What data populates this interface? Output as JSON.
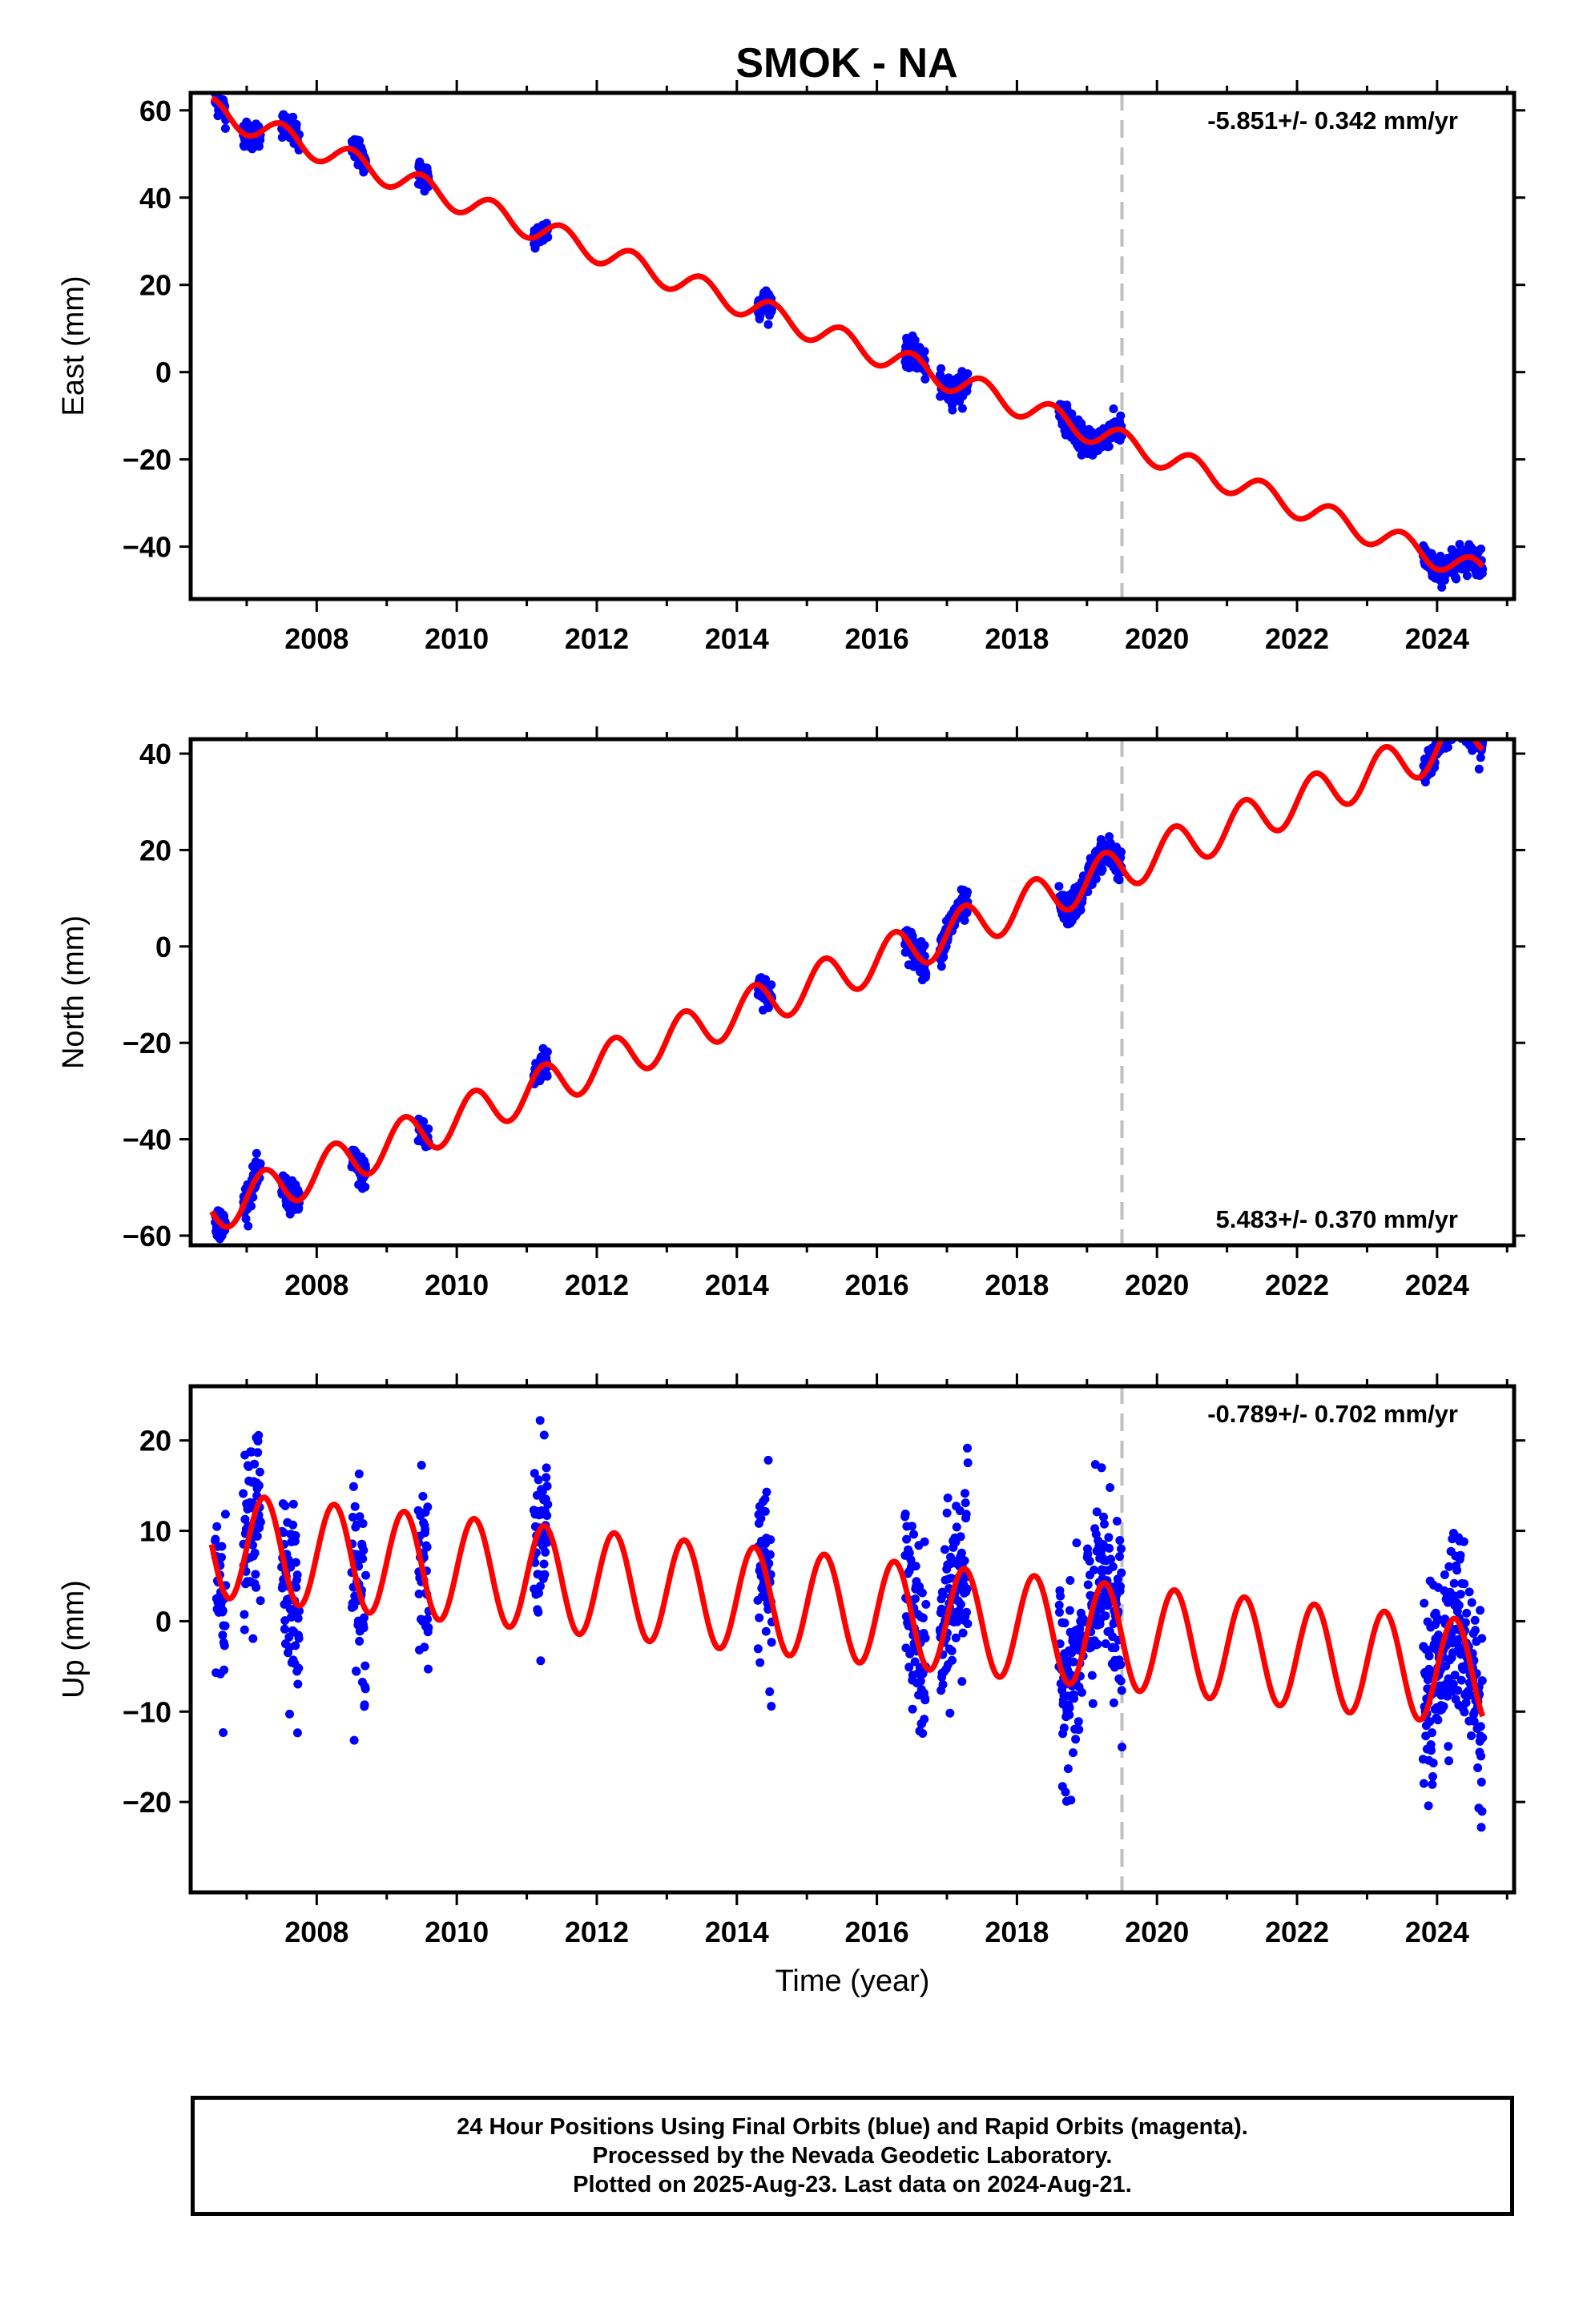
{
  "title": "SMOK - NA",
  "xlabel": "Time (year)",
  "footer": {
    "line1": "24 Hour Positions Using Final Orbits (blue) and Rapid Orbits (magenta).",
    "line2": "Processed by the Nevada Geodetic Laboratory.",
    "line3": "Plotted on 2025-Aug-23. Last data on 2024-Aug-21."
  },
  "colors": {
    "data": "#0000ff",
    "model": "#ff0000",
    "marker_line": "#c0c0c0",
    "axis": "#000000"
  },
  "chart_data": [
    {
      "type": "scatter",
      "ylabel": "East (mm)",
      "rate": "-5.851+/- 0.342 mm/yr",
      "rate_position": "top-right",
      "xlim": [
        2006.2,
        2025.1
      ],
      "ylim": [
        -52,
        64
      ],
      "xticks": [
        2008,
        2010,
        2012,
        2014,
        2016,
        2018,
        2020,
        2022,
        2024
      ],
      "yticks": [
        -40,
        -20,
        0,
        20,
        40,
        60
      ],
      "vline_x": 2019.5,
      "model": {
        "intercept": 60.0,
        "rate": -5.851,
        "annual_amp": 2.8,
        "phase": 0.25,
        "offset": 0.0
      },
      "data_segments": [
        [
          2006.55,
          2006.7
        ],
        [
          2006.95,
          2007.2
        ],
        [
          2007.5,
          2007.75
        ],
        [
          2008.5,
          2008.7
        ],
        [
          2009.45,
          2009.6
        ],
        [
          2011.1,
          2011.3
        ],
        [
          2014.3,
          2014.5
        ],
        [
          2016.4,
          2016.7
        ],
        [
          2016.9,
          2017.3
        ],
        [
          2018.6,
          2018.95
        ],
        [
          2019.0,
          2019.5
        ],
        [
          2023.8,
          2024.65
        ]
      ],
      "data_scatter": 1.5
    },
    {
      "type": "scatter",
      "ylabel": "North (mm)",
      "rate": "5.483+/- 0.370 mm/yr",
      "rate_position": "bottom-right",
      "xlim": [
        2006.2,
        2025.1
      ],
      "ylim": [
        -62,
        43
      ],
      "xticks": [
        2008,
        2010,
        2012,
        2014,
        2016,
        2018,
        2020,
        2022,
        2024
      ],
      "yticks": [
        -60,
        -40,
        -20,
        0,
        20,
        40
      ],
      "vline_x": 2019.5,
      "model": {
        "intercept": -55.0,
        "rate": 5.483,
        "annual_amp": 4.5,
        "phase": 0.0,
        "offset": 0.0
      },
      "data_segments": [
        [
          2006.55,
          2006.7
        ],
        [
          2006.95,
          2007.2
        ],
        [
          2007.5,
          2007.75
        ],
        [
          2008.5,
          2008.7
        ],
        [
          2009.45,
          2009.6
        ],
        [
          2011.1,
          2011.3
        ],
        [
          2014.3,
          2014.5
        ],
        [
          2016.4,
          2016.7
        ],
        [
          2016.9,
          2017.3
        ],
        [
          2018.6,
          2018.95
        ],
        [
          2019.0,
          2019.5
        ],
        [
          2023.8,
          2024.65
        ]
      ],
      "data_scatter": 1.6
    },
    {
      "type": "scatter",
      "ylabel": "Up (mm)",
      "rate": "-0.789+/- 0.702 mm/yr",
      "rate_position": "top-right",
      "xlim": [
        2006.2,
        2025.1
      ],
      "ylim": [
        -30,
        26
      ],
      "xticks": [
        2008,
        2010,
        2012,
        2014,
        2016,
        2018,
        2020,
        2022,
        2024
      ],
      "yticks": [
        -20,
        -10,
        0,
        10,
        20
      ],
      "vline_x": 2019.5,
      "model": {
        "intercept": 8.5,
        "rate": -0.789,
        "annual_amp": 5.8,
        "phase": 0.0,
        "offset": 0.0
      },
      "data_segments": [
        [
          2006.55,
          2006.7
        ],
        [
          2006.95,
          2007.2
        ],
        [
          2007.5,
          2007.75
        ],
        [
          2008.5,
          2008.7
        ],
        [
          2009.45,
          2009.6
        ],
        [
          2011.1,
          2011.3
        ],
        [
          2014.3,
          2014.5
        ],
        [
          2016.4,
          2016.7
        ],
        [
          2016.9,
          2017.3
        ],
        [
          2018.6,
          2018.95
        ],
        [
          2019.0,
          2019.5
        ],
        [
          2023.8,
          2024.65
        ]
      ],
      "data_scatter": 5.0
    }
  ]
}
